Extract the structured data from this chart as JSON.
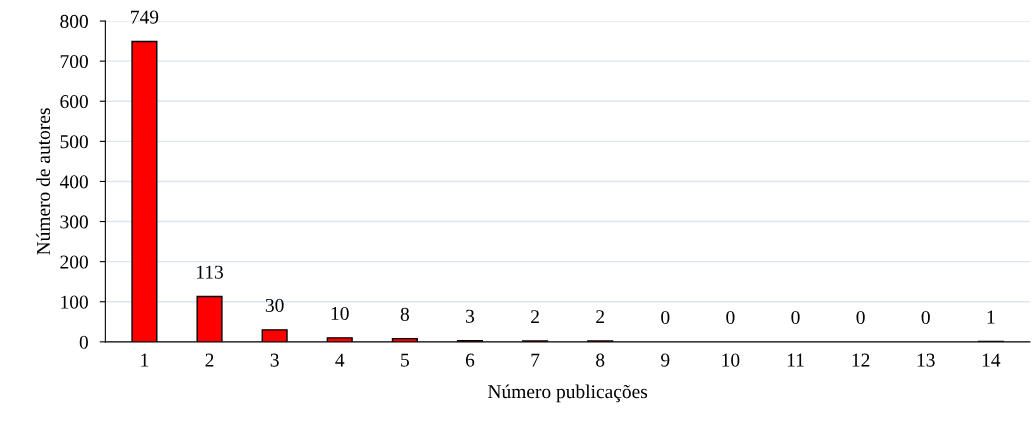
{
  "chart_data": {
    "type": "bar",
    "xlabel": "Número publicações",
    "ylabel": "Número de autores",
    "categories": [
      "1",
      "2",
      "3",
      "4",
      "5",
      "6",
      "7",
      "8",
      "9",
      "10",
      "11",
      "12",
      "13",
      "14"
    ],
    "values": [
      749,
      113,
      30,
      10,
      8,
      3,
      2,
      2,
      0,
      0,
      0,
      0,
      0,
      1
    ],
    "color": "#ff0000",
    "ylim": [
      0,
      800
    ],
    "yticks": [
      0,
      100,
      200,
      300,
      400,
      500,
      600,
      700,
      800
    ],
    "grid": "y",
    "data_labels": true
  }
}
